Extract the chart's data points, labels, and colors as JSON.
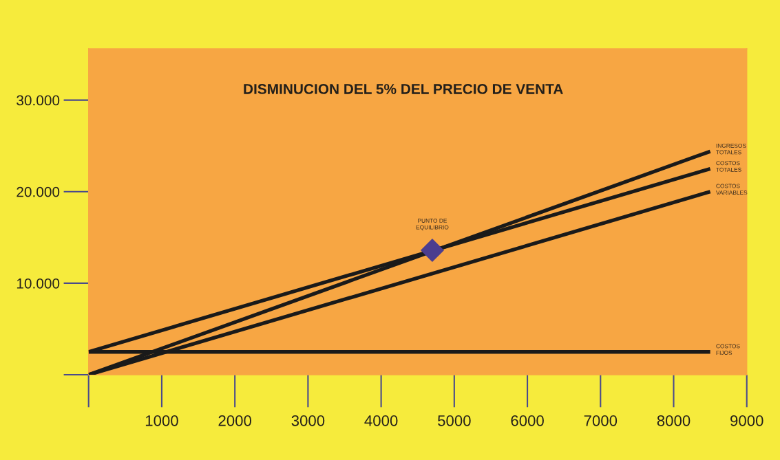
{
  "chart_data": {
    "type": "line",
    "title": "DISMINUCION DEL 5% DEL PRECIO DE VENTA",
    "series": [
      {
        "name": "INGRESOS\nTOTALES",
        "color": "#1a1a1a",
        "x": [
          0,
          8500
        ],
        "values": [
          0,
          24400
        ]
      },
      {
        "name": "COSTOS\nTOTALES",
        "color": "#1a1a1a",
        "x": [
          0,
          8500
        ],
        "values": [
          2500,
          22500
        ]
      },
      {
        "name": "COSTOS\nVARIABLES",
        "color": "#1a1a1a",
        "x": [
          0,
          8500
        ],
        "values": [
          0,
          20000
        ]
      },
      {
        "name": "COSTOS\nFIJOS",
        "color": "#1a1a1a",
        "x": [
          0,
          8500
        ],
        "values": [
          2500,
          2500
        ]
      },
      {
        "name": "PUNTO DE\nEQUILIBRIO",
        "type": "scatter",
        "marker": "diamond",
        "color": "#4b3d8f",
        "x": [
          4700
        ],
        "values": [
          13600
        ]
      }
    ],
    "xlim": [
      0,
      9000
    ],
    "xticks": [
      {
        "value": 0,
        "label": null
      },
      1000,
      2000,
      3000,
      4000,
      5000,
      6000,
      7000,
      8000,
      9000
    ],
    "ylim": [
      0,
      35600
    ],
    "yticks": [
      {
        "value": 0,
        "label": null
      },
      {
        "value": 10000,
        "label": "10.000"
      },
      {
        "value": 20000,
        "label": "20.000"
      },
      {
        "value": 30000,
        "label": "30.000"
      }
    ],
    "marker": "none",
    "line_style": "solid"
  }
}
